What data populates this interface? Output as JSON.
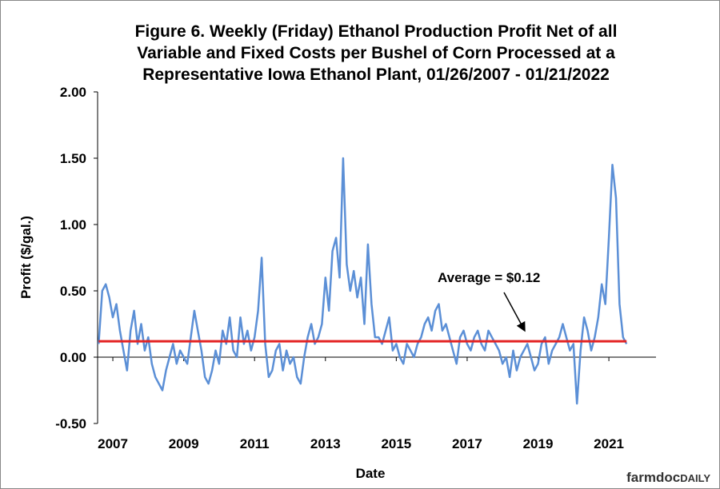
{
  "chart_data": {
    "type": "line",
    "title": [
      "Figure 6. Weekly (Friday) Ethanol Production Profit Net of all",
      "Variable and Fixed Costs per Bushel of Corn Processed at a",
      "Representative  Iowa Ethanol Plant, 01/26/2007  - 01/21/2022"
    ],
    "x_label": "Date",
    "y_label": "Profit ($/gal.)",
    "x": [
      2007.1,
      2007.2,
      2007.3,
      2007.4,
      2007.5,
      2007.6,
      2007.7,
      2007.8,
      2007.9,
      2008.0,
      2008.1,
      2008.2,
      2008.3,
      2008.4,
      2008.5,
      2008.6,
      2008.7,
      2008.8,
      2008.9,
      2009.0,
      2009.1,
      2009.2,
      2009.3,
      2009.4,
      2009.5,
      2009.6,
      2009.7,
      2009.8,
      2009.9,
      2010.0,
      2010.1,
      2010.2,
      2010.3,
      2010.4,
      2010.5,
      2010.6,
      2010.7,
      2010.8,
      2010.9,
      2011.0,
      2011.1,
      2011.2,
      2011.3,
      2011.4,
      2011.5,
      2011.6,
      2011.7,
      2011.8,
      2011.9,
      2012.0,
      2012.1,
      2012.2,
      2012.3,
      2012.4,
      2012.5,
      2012.6,
      2012.7,
      2012.8,
      2012.9,
      2013.0,
      2013.1,
      2013.2,
      2013.3,
      2013.4,
      2013.5,
      2013.6,
      2013.7,
      2013.8,
      2013.9,
      2014.0,
      2014.1,
      2014.2,
      2014.3,
      2014.4,
      2014.5,
      2014.6,
      2014.7,
      2014.8,
      2014.9,
      2015.0,
      2015.1,
      2015.2,
      2015.3,
      2015.4,
      2015.5,
      2015.6,
      2015.7,
      2015.8,
      2015.9,
      2016.0,
      2016.1,
      2016.2,
      2016.3,
      2016.4,
      2016.5,
      2016.6,
      2016.7,
      2016.8,
      2016.9,
      2017.0,
      2017.1,
      2017.2,
      2017.3,
      2017.4,
      2017.5,
      2017.6,
      2017.7,
      2017.8,
      2017.9,
      2018.0,
      2018.1,
      2018.2,
      2018.3,
      2018.4,
      2018.5,
      2018.6,
      2018.7,
      2018.8,
      2018.9,
      2019.0,
      2019.1,
      2019.2,
      2019.3,
      2019.4,
      2019.5,
      2019.6,
      2019.7,
      2019.8,
      2019.9,
      2020.0,
      2020.1,
      2020.2,
      2020.3,
      2020.4,
      2020.5,
      2020.6,
      2020.7,
      2020.8,
      2020.9,
      2021.0,
      2021.1,
      2021.2,
      2021.3,
      2021.4,
      2021.5,
      2021.6,
      2021.7,
      2021.8,
      2021.9,
      2022.0
    ],
    "series": [
      {
        "color": "#5b8fd6",
        "values": [
          0.1,
          0.5,
          0.55,
          0.45,
          0.3,
          0.4,
          0.2,
          0.05,
          -0.1,
          0.2,
          0.35,
          0.1,
          0.25,
          0.05,
          0.15,
          -0.05,
          -0.15,
          -0.2,
          -0.25,
          -0.1,
          0.0,
          0.1,
          -0.05,
          0.05,
          0.0,
          -0.05,
          0.15,
          0.35,
          0.2,
          0.05,
          -0.15,
          -0.2,
          -0.1,
          0.05,
          -0.05,
          0.2,
          0.1,
          0.3,
          0.05,
          0.0,
          0.3,
          0.1,
          0.2,
          0.05,
          0.15,
          0.35,
          0.75,
          0.1,
          -0.15,
          -0.1,
          0.05,
          0.1,
          -0.1,
          0.05,
          -0.05,
          0.0,
          -0.15,
          -0.2,
          0.0,
          0.15,
          0.25,
          0.1,
          0.15,
          0.25,
          0.6,
          0.35,
          0.8,
          0.9,
          0.6,
          1.5,
          0.7,
          0.5,
          0.65,
          0.45,
          0.6,
          0.25,
          0.85,
          0.4,
          0.15,
          0.15,
          0.1,
          0.2,
          0.3,
          0.05,
          0.1,
          0.0,
          -0.05,
          0.1,
          0.05,
          0.0,
          0.1,
          0.15,
          0.25,
          0.3,
          0.2,
          0.35,
          0.4,
          0.2,
          0.25,
          0.15,
          0.05,
          -0.05,
          0.15,
          0.2,
          0.1,
          0.05,
          0.15,
          0.2,
          0.1,
          0.05,
          0.2,
          0.15,
          0.1,
          0.05,
          -0.05,
          0.0,
          -0.15,
          0.05,
          -0.1,
          0.0,
          0.05,
          0.1,
          0.0,
          -0.1,
          -0.05,
          0.1,
          0.15,
          -0.05,
          0.05,
          0.1,
          0.15,
          0.25,
          0.15,
          0.05,
          0.1,
          -0.35,
          0.05,
          0.3,
          0.2,
          0.05,
          0.15,
          0.3,
          0.55,
          0.4,
          0.9,
          1.45,
          1.2,
          0.4,
          0.15,
          0.1
        ]
      }
    ],
    "average": {
      "value": 0.12,
      "label": "Average = $0.12",
      "color": "#e32222"
    },
    "xlim": [
      2007.07,
      2022.83
    ],
    "xticks": [
      {
        "value": 2007.5,
        "label": "2007"
      },
      {
        "value": 2009.5,
        "label": "2009"
      },
      {
        "value": 2011.5,
        "label": "2011"
      },
      {
        "value": 2013.5,
        "label": "2013"
      },
      {
        "value": 2015.5,
        "label": "2015"
      },
      {
        "value": 2017.5,
        "label": "2017"
      },
      {
        "value": 2019.5,
        "label": "2019"
      },
      {
        "value": 2021.5,
        "label": "2021"
      }
    ],
    "ylim": [
      -0.5,
      2.0
    ],
    "yticks": [
      {
        "value": -0.5,
        "label": "-0.50"
      },
      {
        "value": 0,
        "label": "0.00"
      },
      {
        "value": 0.5,
        "label": "0.50"
      },
      {
        "value": 1.0,
        "label": "1.00"
      },
      {
        "value": 1.5,
        "label": "1.50"
      },
      {
        "value": 2.0,
        "label": "2.00"
      }
    ],
    "grid": false,
    "logo": [
      "farmdoc",
      "DAILY"
    ]
  }
}
